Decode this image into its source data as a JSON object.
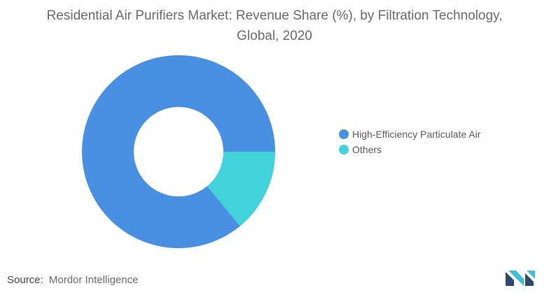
{
  "chart_data": {
    "type": "pie",
    "donut": true,
    "title": "Residential Air Purifiers Market: Revenue Share (%), by Filtration Technology, Global, 2020",
    "categories": [
      "High-Efficiency Particulate Air",
      "Others"
    ],
    "values": [
      86,
      14
    ],
    "colors": [
      "#4a90e2",
      "#41d3d9"
    ],
    "legend_position": "right"
  },
  "footer": {
    "source_label": "Source:",
    "source_value": "Mordor Intelligence",
    "logo_icon": "mordor-intelligence-logo",
    "logo_colors": [
      "#2c4a6e",
      "#3fbfd0"
    ]
  }
}
